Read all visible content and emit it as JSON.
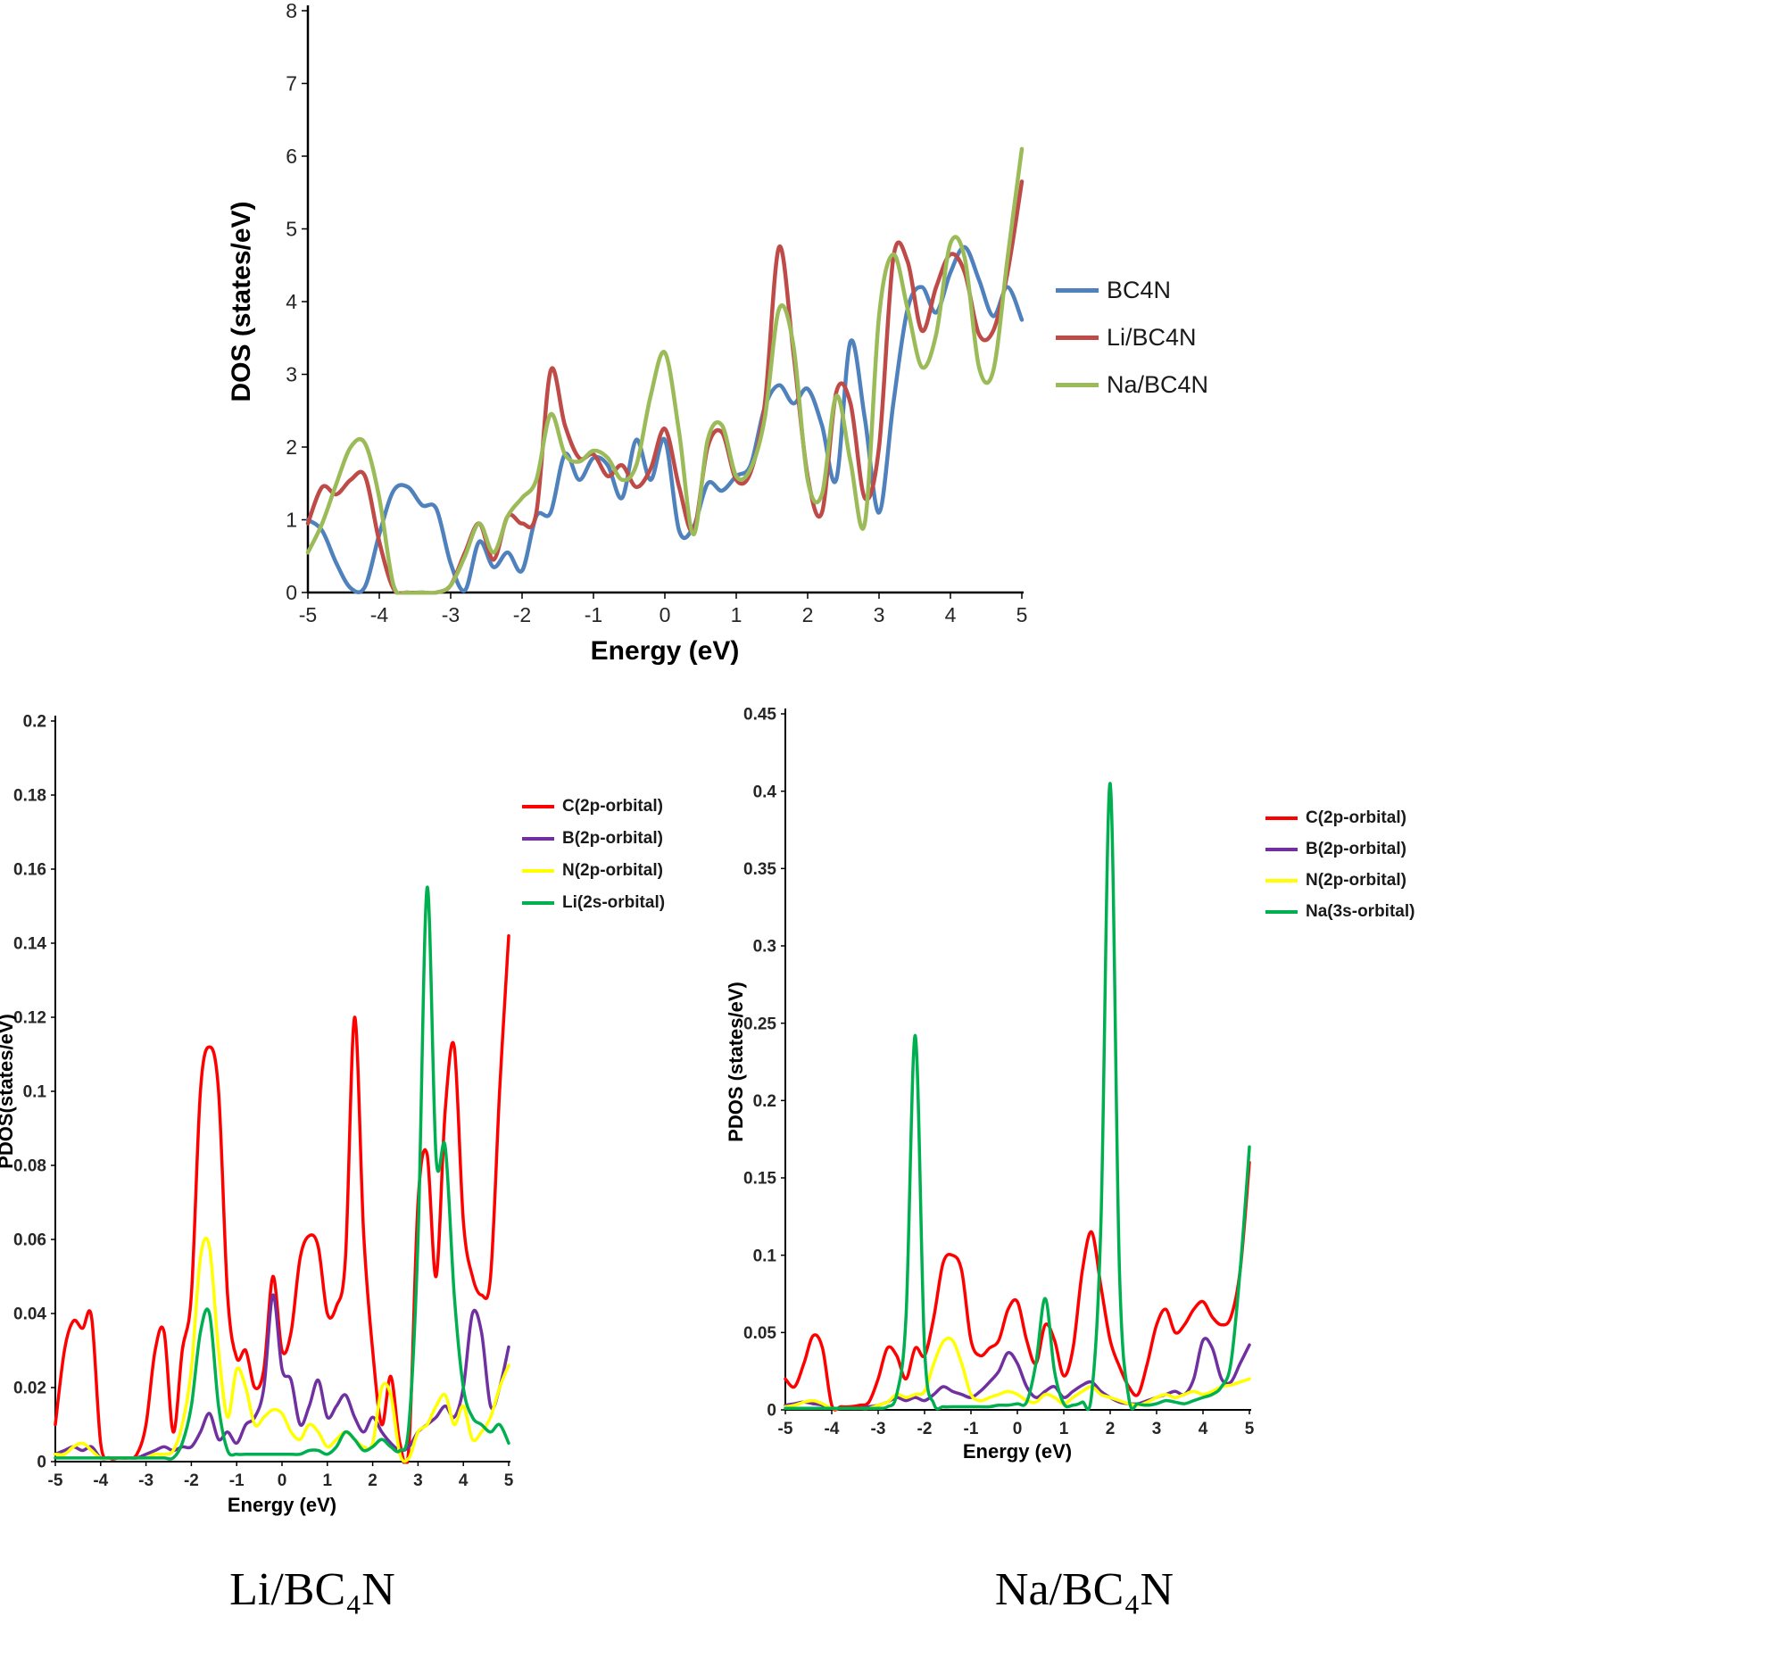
{
  "figure": {
    "background": "#ffffff"
  },
  "chart_data": [
    {
      "id": "dos",
      "type": "line",
      "title": "",
      "xlabel": "Energy (eV)",
      "ylabel": "DOS (states/eV)",
      "xlim": [
        -5,
        5
      ],
      "ylim": [
        0,
        8
      ],
      "xtick_step": 1,
      "ytick_step": 1,
      "grid": false,
      "legend_position": "right",
      "x": [
        -5,
        -4.8,
        -4.6,
        -4.4,
        -4.2,
        -4,
        -3.8,
        -3.6,
        -3.4,
        -3.2,
        -3,
        -2.8,
        -2.6,
        -2.4,
        -2.2,
        -2,
        -1.8,
        -1.6,
        -1.4,
        -1.2,
        -1,
        -0.8,
        -0.6,
        -0.4,
        -0.2,
        0,
        0.2,
        0.4,
        0.6,
        0.8,
        1,
        1.2,
        1.4,
        1.6,
        1.8,
        2,
        2.2,
        2.4,
        2.6,
        2.8,
        3,
        3.2,
        3.4,
        3.6,
        3.8,
        4,
        4.2,
        4.4,
        4.6,
        4.8,
        5
      ],
      "series": [
        {
          "name": "BC4N",
          "color": "#4F81BD",
          "values": [
            1.0,
            0.85,
            0.4,
            0.06,
            0.08,
            0.8,
            1.4,
            1.45,
            1.2,
            1.15,
            0.4,
            0.03,
            0.7,
            0.35,
            0.55,
            0.3,
            1.05,
            1.1,
            1.9,
            1.55,
            1.85,
            1.75,
            1.3,
            2.1,
            1.55,
            2.1,
            0.85,
            0.9,
            1.5,
            1.4,
            1.6,
            1.75,
            2.55,
            2.85,
            2.6,
            2.8,
            2.3,
            1.55,
            3.45,
            2.4,
            1.1,
            2.6,
            3.9,
            4.2,
            3.85,
            4.4,
            4.75,
            4.3,
            3.8,
            4.2,
            3.75
          ]
        },
        {
          "name": "Li/BC4N",
          "color": "#BE4B48",
          "values": [
            0.95,
            1.45,
            1.35,
            1.55,
            1.6,
            0.7,
            0.05,
            0,
            0,
            0,
            0.1,
            0.55,
            0.95,
            0.45,
            1.05,
            0.95,
            1.1,
            3.05,
            2.3,
            1.85,
            1.9,
            1.6,
            1.75,
            1.45,
            1.7,
            2.25,
            1.45,
            0.85,
            2.0,
            2.2,
            1.55,
            1.65,
            2.6,
            4.75,
            3.3,
            1.6,
            1.1,
            2.75,
            2.6,
            1.3,
            2.0,
            4.6,
            4.55,
            3.6,
            4.2,
            4.65,
            4.4,
            3.55,
            3.6,
            4.4,
            5.65
          ]
        },
        {
          "name": "Na/BC4N",
          "color": "#9BBB59",
          "values": [
            0.55,
            0.95,
            1.5,
            2.0,
            2.05,
            1.3,
            0.1,
            0,
            0,
            0,
            0.1,
            0.5,
            0.95,
            0.55,
            1.05,
            1.3,
            1.55,
            2.45,
            1.9,
            1.8,
            1.95,
            1.85,
            1.55,
            1.75,
            2.7,
            3.3,
            2.2,
            0.8,
            2.1,
            2.3,
            1.6,
            1.7,
            2.4,
            3.9,
            3.4,
            1.55,
            1.35,
            2.7,
            1.8,
            0.95,
            3.8,
            4.65,
            3.9,
            3.1,
            3.55,
            4.8,
            4.6,
            3.1,
            3.05,
            4.6,
            6.1
          ]
        }
      ]
    },
    {
      "id": "pdos-li",
      "type": "line",
      "title": "",
      "caption": "Li/BC₄N",
      "xlabel": "Energy (eV)",
      "ylabel": "PDOS(states/eV)",
      "xlim": [
        -5,
        5
      ],
      "ylim": [
        0,
        0.2
      ],
      "xtick_step": 1,
      "ytick_step": 0.02,
      "grid": false,
      "legend_position": "right",
      "x": [
        -5,
        -4.8,
        -4.6,
        -4.4,
        -4.2,
        -4,
        -3.8,
        -3.6,
        -3.4,
        -3.2,
        -3,
        -2.8,
        -2.6,
        -2.4,
        -2.2,
        -2,
        -1.8,
        -1.6,
        -1.4,
        -1.2,
        -1,
        -0.8,
        -0.6,
        -0.4,
        -0.2,
        0,
        0.2,
        0.4,
        0.6,
        0.8,
        1,
        1.2,
        1.4,
        1.6,
        1.8,
        2,
        2.2,
        2.4,
        2.6,
        2.8,
        3,
        3.2,
        3.4,
        3.6,
        3.8,
        4,
        4.2,
        4.4,
        4.6,
        4.8,
        5
      ],
      "series": [
        {
          "name": "C(2p-orbital)",
          "color": "#FF0000",
          "values": [
            0.01,
            0.03,
            0.038,
            0.036,
            0.039,
            0.005,
            0.001,
            0.001,
            0.001,
            0.002,
            0.01,
            0.03,
            0.035,
            0.008,
            0.03,
            0.045,
            0.1,
            0.112,
            0.1,
            0.045,
            0.028,
            0.03,
            0.02,
            0.025,
            0.05,
            0.03,
            0.035,
            0.055,
            0.061,
            0.058,
            0.04,
            0.042,
            0.055,
            0.12,
            0.062,
            0.03,
            0.01,
            0.023,
            0.005,
            0.004,
            0.07,
            0.083,
            0.05,
            0.095,
            0.112,
            0.065,
            0.05,
            0.045,
            0.05,
            0.1,
            0.142
          ]
        },
        {
          "name": "B(2p-orbital)",
          "color": "#7030A0",
          "values": [
            0.002,
            0.003,
            0.004,
            0.003,
            0.004,
            0.001,
            0.001,
            0.001,
            0.001,
            0.001,
            0.002,
            0.003,
            0.004,
            0.003,
            0.004,
            0.004,
            0.008,
            0.013,
            0.006,
            0.008,
            0.005,
            0.01,
            0.012,
            0.02,
            0.045,
            0.025,
            0.022,
            0.01,
            0.015,
            0.022,
            0.012,
            0.015,
            0.018,
            0.012,
            0.008,
            0.012,
            0.008,
            0.005,
            0.003,
            0.004,
            0.008,
            0.01,
            0.012,
            0.015,
            0.012,
            0.02,
            0.04,
            0.035,
            0.015,
            0.02,
            0.031
          ]
        },
        {
          "name": "N(2p-orbital)",
          "color": "#FFFF00",
          "values": [
            0.002,
            0.002,
            0.004,
            0.005,
            0.003,
            0.001,
            0.001,
            0.001,
            0.001,
            0.001,
            0.001,
            0.002,
            0.002,
            0.003,
            0.01,
            0.025,
            0.055,
            0.058,
            0.03,
            0.012,
            0.025,
            0.02,
            0.01,
            0.012,
            0.014,
            0.013,
            0.008,
            0.006,
            0.01,
            0.008,
            0.004,
            0.006,
            0.008,
            0.006,
            0.004,
            0.005,
            0.02,
            0.018,
            0.002,
            0.001,
            0.008,
            0.01,
            0.015,
            0.018,
            0.01,
            0.015,
            0.006,
            0.008,
            0.012,
            0.02,
            0.026
          ]
        },
        {
          "name": "Li(2s-orbital)",
          "color": "#00B050",
          "values": [
            0.001,
            0.001,
            0.001,
            0.001,
            0.001,
            0.001,
            0.001,
            0.001,
            0.001,
            0.001,
            0.001,
            0.001,
            0.001,
            0.001,
            0.005,
            0.015,
            0.035,
            0.04,
            0.015,
            0.003,
            0.002,
            0.002,
            0.002,
            0.002,
            0.002,
            0.002,
            0.002,
            0.002,
            0.003,
            0.003,
            0.002,
            0.004,
            0.008,
            0.006,
            0.003,
            0.004,
            0.006,
            0.004,
            0.003,
            0.01,
            0.06,
            0.155,
            0.082,
            0.085,
            0.045,
            0.02,
            0.012,
            0.01,
            0.008,
            0.01,
            0.005
          ]
        }
      ]
    },
    {
      "id": "pdos-na",
      "type": "line",
      "title": "",
      "caption": "Na/BC₄N",
      "xlabel": "Energy (eV)",
      "ylabel": "PDOS (states/eV)",
      "xlim": [
        -5,
        5
      ],
      "ylim": [
        0,
        0.45
      ],
      "xtick_step": 1,
      "ytick_step": 0.05,
      "grid": false,
      "legend_position": "right",
      "x": [
        -5,
        -4.8,
        -4.6,
        -4.4,
        -4.2,
        -4,
        -3.8,
        -3.6,
        -3.4,
        -3.2,
        -3,
        -2.8,
        -2.6,
        -2.4,
        -2.2,
        -2,
        -1.8,
        -1.6,
        -1.4,
        -1.2,
        -1,
        -0.8,
        -0.6,
        -0.4,
        -0.2,
        0,
        0.2,
        0.4,
        0.6,
        0.8,
        1,
        1.2,
        1.4,
        1.6,
        1.8,
        2,
        2.2,
        2.4,
        2.6,
        2.8,
        3,
        3.2,
        3.4,
        3.6,
        3.8,
        4,
        4.2,
        4.4,
        4.6,
        4.8,
        5
      ],
      "series": [
        {
          "name": "C(2p-orbital)",
          "color": "#FF0000",
          "values": [
            0.02,
            0.015,
            0.03,
            0.048,
            0.04,
            0.003,
            0.002,
            0.002,
            0.003,
            0.005,
            0.02,
            0.04,
            0.035,
            0.02,
            0.04,
            0.035,
            0.06,
            0.095,
            0.1,
            0.09,
            0.045,
            0.035,
            0.04,
            0.045,
            0.065,
            0.07,
            0.045,
            0.03,
            0.055,
            0.045,
            0.022,
            0.04,
            0.09,
            0.115,
            0.08,
            0.045,
            0.028,
            0.015,
            0.01,
            0.03,
            0.055,
            0.065,
            0.05,
            0.055,
            0.065,
            0.07,
            0.06,
            0.055,
            0.06,
            0.09,
            0.16
          ]
        },
        {
          "name": "B(2p-orbital)",
          "color": "#7030A0",
          "values": [
            0.003,
            0.004,
            0.005,
            0.004,
            0.003,
            0.001,
            0.001,
            0.001,
            0.001,
            0.002,
            0.003,
            0.005,
            0.008,
            0.006,
            0.008,
            0.006,
            0.01,
            0.015,
            0.012,
            0.01,
            0.008,
            0.012,
            0.018,
            0.025,
            0.037,
            0.03,
            0.015,
            0.008,
            0.012,
            0.015,
            0.008,
            0.012,
            0.016,
            0.018,
            0.012,
            0.008,
            0.005,
            0.004,
            0.004,
            0.006,
            0.008,
            0.01,
            0.012,
            0.01,
            0.02,
            0.045,
            0.04,
            0.02,
            0.018,
            0.03,
            0.042
          ]
        },
        {
          "name": "N(2p-orbital)",
          "color": "#FFFF00",
          "values": [
            0.002,
            0.003,
            0.005,
            0.006,
            0.004,
            0.001,
            0.001,
            0.001,
            0.001,
            0.001,
            0.003,
            0.005,
            0.01,
            0.008,
            0.01,
            0.012,
            0.03,
            0.044,
            0.045,
            0.03,
            0.01,
            0.006,
            0.008,
            0.01,
            0.012,
            0.01,
            0.006,
            0.005,
            0.01,
            0.008,
            0.004,
            0.008,
            0.012,
            0.015,
            0.01,
            0.008,
            0.006,
            0.004,
            0.003,
            0.005,
            0.008,
            0.01,
            0.008,
            0.01,
            0.012,
            0.01,
            0.012,
            0.015,
            0.016,
            0.018,
            0.02
          ]
        },
        {
          "name": "Na(3s-orbital)",
          "color": "#00B050",
          "values": [
            0.001,
            0.001,
            0.001,
            0.001,
            0.001,
            0.001,
            0.001,
            0.001,
            0.001,
            0.001,
            0.001,
            0.002,
            0.01,
            0.06,
            0.242,
            0.04,
            0.004,
            0.002,
            0.002,
            0.002,
            0.002,
            0.002,
            0.002,
            0.003,
            0.003,
            0.004,
            0.005,
            0.03,
            0.072,
            0.025,
            0.004,
            0.003,
            0.005,
            0.01,
            0.12,
            0.405,
            0.09,
            0.008,
            0.004,
            0.003,
            0.004,
            0.006,
            0.005,
            0.004,
            0.006,
            0.008,
            0.01,
            0.015,
            0.03,
            0.09,
            0.17
          ]
        }
      ]
    }
  ]
}
